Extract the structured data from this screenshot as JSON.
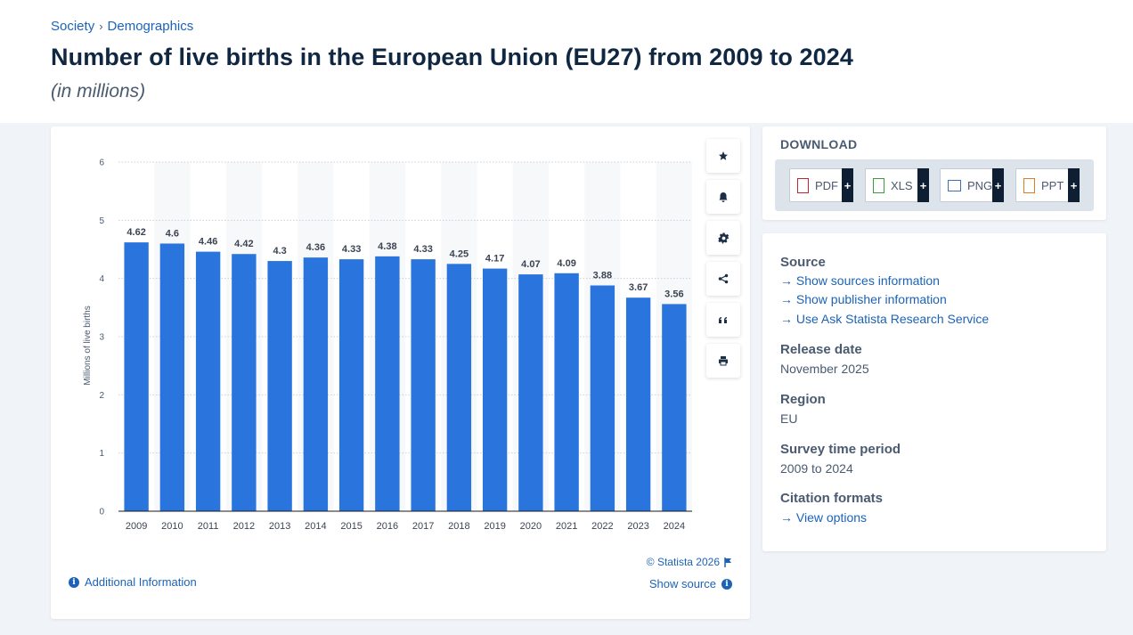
{
  "breadcrumb": {
    "item1": "Society",
    "item2": "Demographics"
  },
  "title": "Number of live births in the European Union (EU27) from 2009 to 2024",
  "subtitle": "(in millions)",
  "chart_data": {
    "type": "bar",
    "categories": [
      "2009",
      "2010",
      "2011",
      "2012",
      "2013",
      "2014",
      "2015",
      "2016",
      "2017",
      "2018",
      "2019",
      "2020",
      "2021",
      "2022",
      "2023",
      "2024"
    ],
    "values": [
      4.62,
      4.6,
      4.46,
      4.42,
      4.3,
      4.36,
      4.33,
      4.38,
      4.33,
      4.25,
      4.17,
      4.07,
      4.09,
      3.88,
      3.67,
      3.56
    ],
    "value_labels": [
      "4.62",
      "4.6",
      "4.46",
      "4.42",
      "4.3",
      "4.36",
      "4.33",
      "4.38",
      "4.33",
      "4.25",
      "4.17",
      "4.07",
      "4.09",
      "3.88",
      "3.67",
      "3.56"
    ],
    "ylabel": "Millions of live births",
    "xlabel": "",
    "ylim": [
      0,
      6
    ],
    "yticks": [
      "0",
      "1",
      "2",
      "3",
      "4",
      "5",
      "6"
    ],
    "bar_color": "#2a74dd",
    "grid": true
  },
  "tools": {
    "icons": [
      "star-icon",
      "bell-icon",
      "gear-icon",
      "share-icon",
      "quote-icon",
      "print-icon"
    ]
  },
  "footer": {
    "additional_info": "Additional Information",
    "copyright": "© Statista 2026",
    "show_source": "Show source"
  },
  "download": {
    "title": "DOWNLOAD",
    "buttons": [
      {
        "label": "PDF",
        "color": "#c0282d"
      },
      {
        "label": "XLS",
        "color": "#3d9a3d"
      },
      {
        "label": "PNG",
        "color": "#3b6fb8"
      },
      {
        "label": "PPT",
        "color": "#e07b24"
      }
    ],
    "plus": "+"
  },
  "info": {
    "source_heading": "Source",
    "source_links": [
      "Show sources information",
      "Show publisher information",
      "Use Ask Statista Research Service"
    ],
    "release_heading": "Release date",
    "release_value": "November 2025",
    "region_heading": "Region",
    "region_value": "EU",
    "survey_heading": "Survey time period",
    "survey_value": "2009 to 2024",
    "citation_heading": "Citation formats",
    "citation_link": "View options"
  }
}
